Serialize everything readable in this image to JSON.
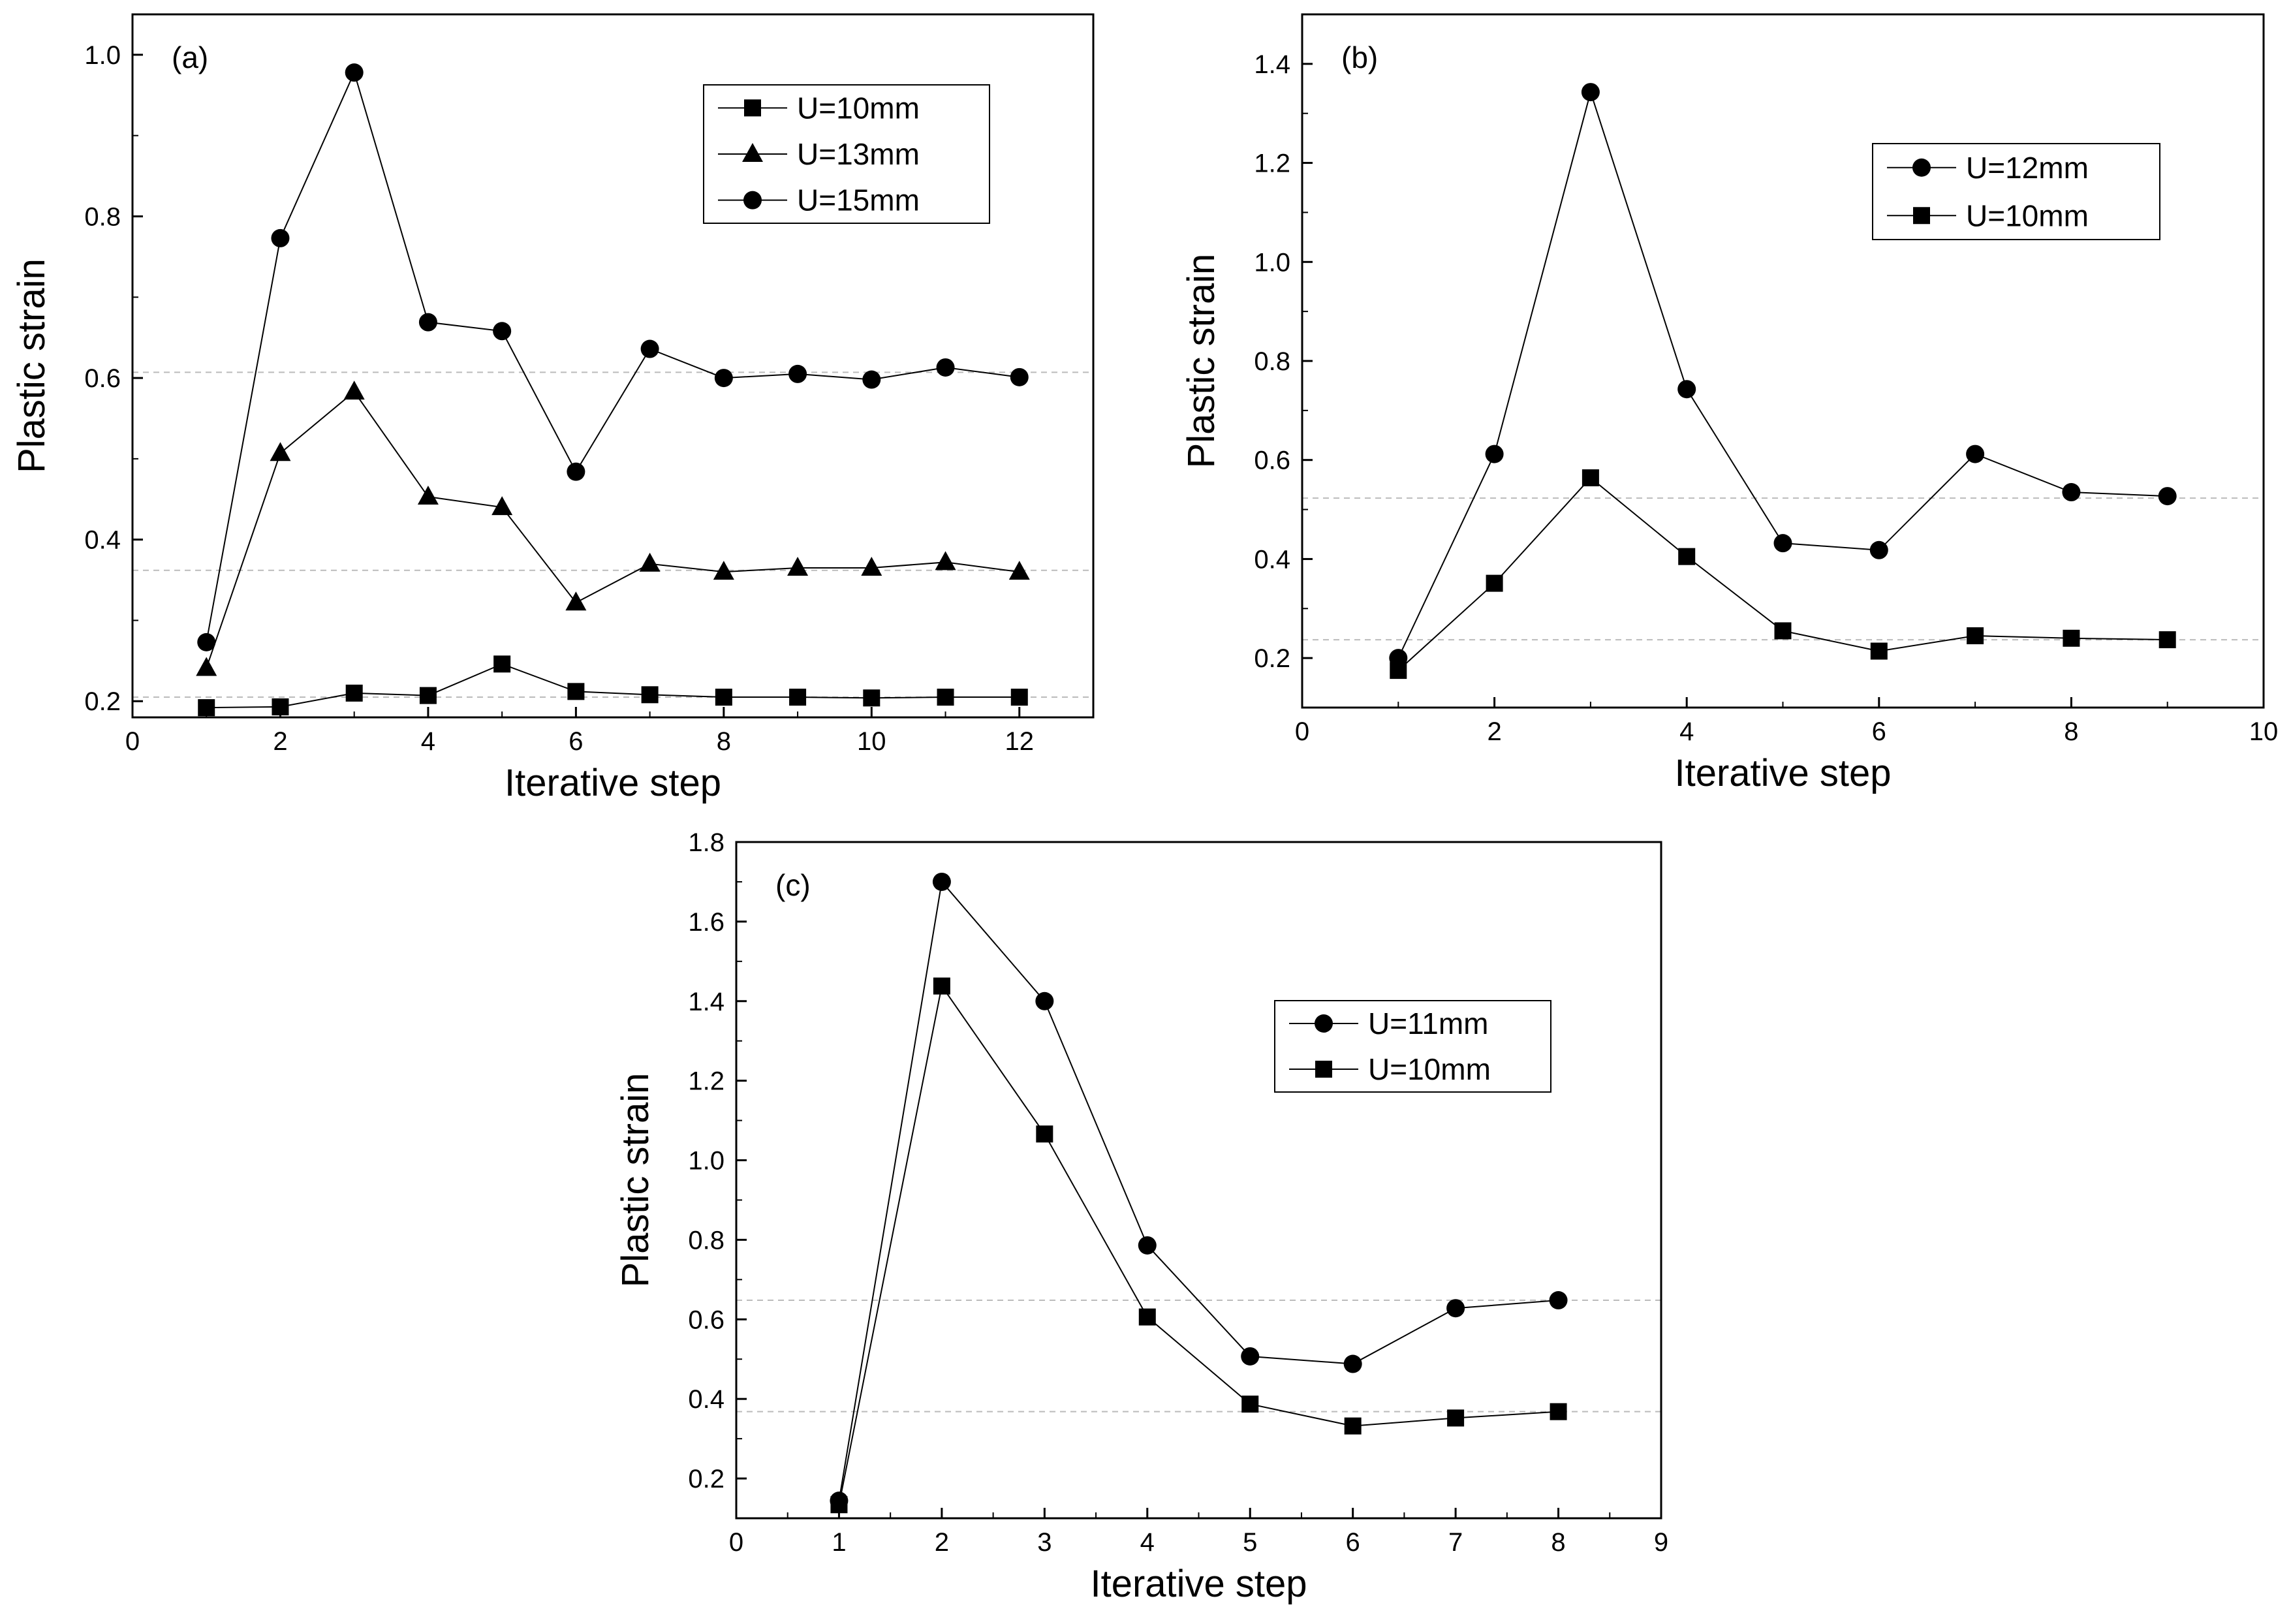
{
  "chart_data": [
    {
      "type": "line",
      "panel_label": "(a)",
      "xlabel": "Iterative step",
      "ylabel": "Plastic strain",
      "xlim": [
        0,
        13
      ],
      "ylim": [
        0.18,
        1.05
      ],
      "xticks": [
        0,
        2,
        4,
        6,
        8,
        10,
        12
      ],
      "yticks": [
        0.2,
        0.4,
        0.6,
        0.8,
        1.0
      ],
      "xtick_labels": [
        "0",
        "2",
        "4",
        "6",
        "8",
        "10",
        "12"
      ],
      "ytick_labels": [
        "0.2",
        "0.4",
        "0.6",
        "0.8",
        "1.0"
      ],
      "reference_lines": [
        0.205,
        0.362,
        0.607
      ],
      "legend_position": "top-right",
      "series": [
        {
          "name": "U=10mm",
          "marker": "square",
          "x": [
            1,
            2,
            3,
            4,
            5,
            6,
            7,
            8,
            9,
            10,
            11,
            12
          ],
          "values": [
            0.192,
            0.193,
            0.21,
            0.207,
            0.246,
            0.212,
            0.208,
            0.205,
            0.205,
            0.204,
            0.205,
            0.205
          ]
        },
        {
          "name": "U=13mm",
          "marker": "triangle",
          "x": [
            1,
            2,
            3,
            4,
            5,
            6,
            7,
            8,
            9,
            10,
            11,
            12
          ],
          "values": [
            0.241,
            0.507,
            0.583,
            0.453,
            0.44,
            0.322,
            0.37,
            0.36,
            0.365,
            0.365,
            0.372,
            0.36
          ]
        },
        {
          "name": "U=15mm",
          "marker": "circle",
          "x": [
            1,
            2,
            3,
            4,
            5,
            6,
            7,
            8,
            9,
            10,
            11,
            12
          ],
          "values": [
            0.273,
            0.773,
            0.978,
            0.669,
            0.658,
            0.484,
            0.636,
            0.6,
            0.605,
            0.598,
            0.613,
            0.601
          ]
        }
      ]
    },
    {
      "type": "line",
      "panel_label": "(b)",
      "xlabel": "Iterative step",
      "ylabel": "Plastic strain",
      "xlim": [
        0,
        10
      ],
      "ylim": [
        0.1,
        1.5
      ],
      "xticks": [
        0,
        2,
        4,
        6,
        8,
        10
      ],
      "yticks": [
        0.2,
        0.4,
        0.6,
        0.8,
        1.0,
        1.2,
        1.4
      ],
      "xtick_labels": [
        "0",
        "2",
        "4",
        "6",
        "8",
        "10"
      ],
      "ytick_labels": [
        "0.2",
        "0.4",
        "0.6",
        "0.8",
        "1.0",
        "1.2",
        "1.4"
      ],
      "reference_lines": [
        0.523,
        0.237
      ],
      "legend_position": "top-right",
      "series": [
        {
          "name": "U=12mm",
          "marker": "circle",
          "x": [
            1,
            2,
            3,
            4,
            5,
            6,
            7,
            8,
            9
          ],
          "values": [
            0.2,
            0.612,
            1.343,
            0.743,
            0.432,
            0.418,
            0.612,
            0.535,
            0.527
          ]
        },
        {
          "name": "U=10mm",
          "marker": "square",
          "x": [
            1,
            2,
            3,
            4,
            5,
            6,
            7,
            8,
            9
          ],
          "values": [
            0.175,
            0.351,
            0.564,
            0.405,
            0.255,
            0.214,
            0.245,
            0.24,
            0.237
          ]
        }
      ]
    },
    {
      "type": "line",
      "panel_label": "(c)",
      "xlabel": "Iterative step",
      "ylabel": "Plastic strain",
      "xlim": [
        0,
        9
      ],
      "ylim": [
        0.1,
        1.8
      ],
      "xticks": [
        0,
        1,
        2,
        3,
        4,
        5,
        6,
        7,
        8,
        9
      ],
      "yticks": [
        0.2,
        0.4,
        0.6,
        0.8,
        1.0,
        1.2,
        1.4,
        1.6,
        1.8
      ],
      "xtick_labels": [
        "0",
        "1",
        "2",
        "3",
        "4",
        "5",
        "6",
        "7",
        "8",
        "9"
      ],
      "ytick_labels": [
        "0.2",
        "0.4",
        "0.6",
        "0.8",
        "1.0",
        "1.2",
        "1.4",
        "1.6",
        "1.8"
      ],
      "reference_lines": [
        0.648,
        0.368
      ],
      "legend_position": "center-right",
      "series": [
        {
          "name": "U=11mm",
          "marker": "circle",
          "x": [
            1,
            2,
            3,
            4,
            5,
            6,
            7,
            8
          ],
          "values": [
            0.144,
            1.7,
            1.4,
            0.786,
            0.507,
            0.488,
            0.628,
            0.648
          ]
        },
        {
          "name": "U=10mm",
          "marker": "square",
          "x": [
            1,
            2,
            3,
            4,
            5,
            6,
            7,
            8
          ],
          "values": [
            0.134,
            1.438,
            1.066,
            0.606,
            0.387,
            0.332,
            0.352,
            0.368
          ]
        }
      ]
    }
  ]
}
